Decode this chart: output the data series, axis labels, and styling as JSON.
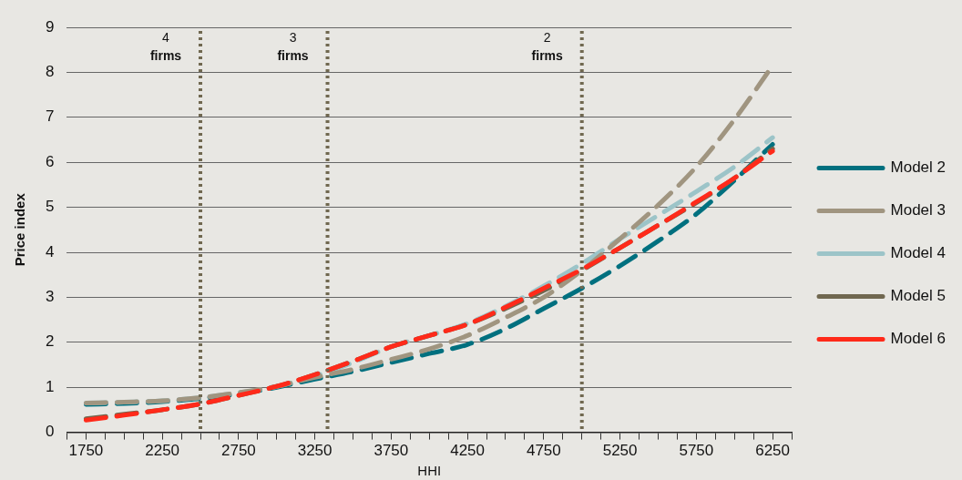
{
  "chart_data": {
    "type": "line",
    "xlabel": "HHI",
    "ylabel": "Price index",
    "x": [
      1750,
      2000,
      2250,
      2500,
      2750,
      3000,
      3250,
      3500,
      3750,
      4000,
      4250,
      4500,
      4750,
      5000,
      5250,
      5500,
      5750,
      6000,
      6250
    ],
    "series": [
      {
        "name": "Model 2",
        "color": "#00707f",
        "values": [
          0.62,
          0.64,
          0.68,
          0.75,
          0.85,
          1.0,
          1.18,
          1.35,
          1.55,
          1.75,
          1.95,
          2.3,
          2.75,
          3.2,
          3.7,
          4.25,
          4.85,
          5.6,
          6.4
        ]
      },
      {
        "name": "Model 3",
        "color": "#a09580",
        "values": [
          0.65,
          0.67,
          0.7,
          0.77,
          0.88,
          1.02,
          1.22,
          1.4,
          1.62,
          1.85,
          2.15,
          2.55,
          3.0,
          3.6,
          4.3,
          5.05,
          5.9,
          6.95,
          8.15
        ]
      },
      {
        "name": "Model 4",
        "color": "#9cc4c8",
        "values": [
          0.65,
          0.67,
          0.7,
          0.77,
          0.88,
          1.02,
          1.25,
          1.55,
          1.9,
          2.15,
          2.42,
          2.8,
          3.25,
          3.75,
          4.3,
          4.82,
          5.35,
          5.9,
          6.55
        ]
      },
      {
        "name": "Model 5",
        "color": "#706850",
        "values": [
          0.3,
          0.4,
          0.5,
          0.63,
          0.82,
          1.02,
          1.28,
          1.58,
          1.9,
          2.15,
          2.4,
          2.75,
          3.15,
          3.6,
          4.1,
          4.6,
          5.1,
          5.65,
          6.3
        ]
      },
      {
        "name": "Model 6",
        "color": "#ff2a1a",
        "values": [
          0.27,
          0.38,
          0.5,
          0.63,
          0.82,
          1.02,
          1.28,
          1.58,
          1.9,
          2.15,
          2.4,
          2.78,
          3.2,
          3.62,
          4.1,
          4.6,
          5.12,
          5.65,
          6.25
        ]
      }
    ],
    "xlim": [
      1625,
      6375
    ],
    "xticks": [
      {
        "value": 1625,
        "label": null
      },
      1750,
      {
        "value": 1875,
        "label": null
      },
      {
        "value": 2000,
        "label": null
      },
      {
        "value": 2125,
        "label": null
      },
      2250,
      {
        "value": 2375,
        "label": null
      },
      {
        "value": 2500,
        "label": null
      },
      {
        "value": 2625,
        "label": null
      },
      2750,
      {
        "value": 2875,
        "label": null
      },
      {
        "value": 3000,
        "label": null
      },
      {
        "value": 3125,
        "label": null
      },
      3250,
      {
        "value": 3375,
        "label": null
      },
      {
        "value": 3500,
        "label": null
      },
      {
        "value": 3625,
        "label": null
      },
      3750,
      {
        "value": 3875,
        "label": null
      },
      {
        "value": 4000,
        "label": null
      },
      {
        "value": 4125,
        "label": null
      },
      4250,
      {
        "value": 4375,
        "label": null
      },
      {
        "value": 4500,
        "label": null
      },
      {
        "value": 4625,
        "label": null
      },
      4750,
      {
        "value": 4875,
        "label": null
      },
      {
        "value": 5000,
        "label": null
      },
      {
        "value": 5125,
        "label": null
      },
      5250,
      {
        "value": 5375,
        "label": null
      },
      {
        "value": 5500,
        "label": null
      },
      {
        "value": 5625,
        "label": null
      },
      5750,
      {
        "value": 5875,
        "label": null
      },
      {
        "value": 6000,
        "label": null
      },
      {
        "value": 6125,
        "label": null
      },
      6250,
      {
        "value": 6375,
        "label": null
      }
    ],
    "ylim": [
      0,
      9
    ],
    "yticks": [
      0,
      1,
      2,
      3,
      4,
      5,
      6,
      7,
      8,
      9
    ],
    "ref_lines": [
      {
        "axis": "x",
        "value": 2500,
        "label": "4 firms",
        "color": "#706850",
        "line_style": "dotted"
      },
      {
        "axis": "x",
        "value": 3333,
        "label": "3 firms",
        "color": "#706850",
        "line_style": "dotted"
      },
      {
        "axis": "x",
        "value": 5000,
        "label": "2 firms",
        "color": "#706850",
        "line_style": "dotted"
      }
    ],
    "grid": "y",
    "legend": "right",
    "line_style": "dashed",
    "marker": "none"
  }
}
